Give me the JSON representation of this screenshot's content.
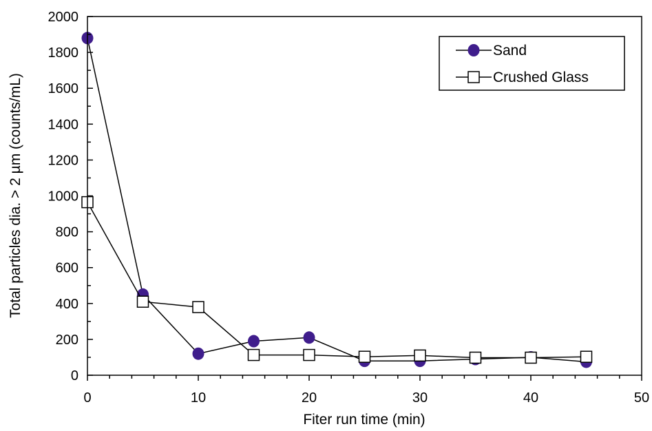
{
  "chart_data": {
    "type": "line",
    "title": "",
    "xlabel": "Fiter run time (min)",
    "ylabel": "Total particles dia. > 2 µm (counts/mL)",
    "xlim": [
      0,
      50
    ],
    "ylim": [
      0,
      2000
    ],
    "x_ticks": [
      0,
      10,
      20,
      30,
      40,
      50
    ],
    "y_ticks": [
      0,
      200,
      400,
      600,
      800,
      1000,
      1200,
      1400,
      1600,
      1800,
      2000
    ],
    "grid": false,
    "legend_position": "top-right",
    "series": [
      {
        "name": "Sand",
        "marker": "filled-circle",
        "color": "#3f1d8c",
        "x": [
          0,
          5,
          10,
          15,
          20,
          25,
          30,
          35,
          40,
          45
        ],
        "y": [
          1880,
          450,
          120,
          190,
          210,
          80,
          80,
          90,
          100,
          75
        ]
      },
      {
        "name": "Crushed Glass",
        "marker": "open-square",
        "color": "#000000",
        "x": [
          0,
          5,
          10,
          15,
          20,
          25,
          30,
          35,
          40,
          45
        ],
        "y": [
          965,
          410,
          380,
          113,
          113,
          103,
          110,
          98,
          98,
          103
        ]
      }
    ]
  }
}
